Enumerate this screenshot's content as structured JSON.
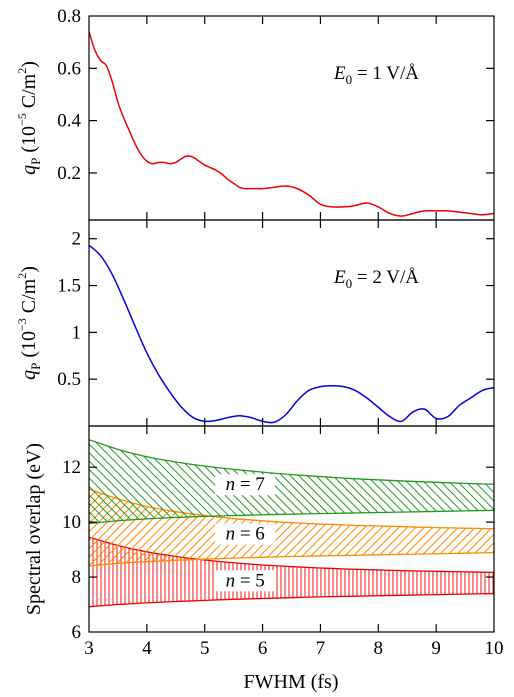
{
  "chart_data": [
    {
      "type": "line",
      "ylabel_main": "q",
      "ylabel_sub": "P",
      "ylabel_unit_pre": "(10",
      "ylabel_exp": "−5",
      "ylabel_unit_post": "C/m",
      "ylabel_unit_exp": "2",
      "ylabel_close": ")",
      "annotation_var": "E",
      "annotation_sub": "0",
      "annotation_val": "= 1 V/Å",
      "ylim": [
        0.02,
        0.8
      ],
      "yticks": [
        0.2,
        0.4,
        0.6,
        0.8
      ],
      "ytick_labels": [
        "0.2",
        "0.4",
        "0.6",
        "0.8"
      ],
      "color": "#ee0000",
      "x": [
        3.0,
        3.1,
        3.2,
        3.3,
        3.4,
        3.5,
        3.6,
        3.7,
        3.8,
        3.9,
        4.0,
        4.1,
        4.2,
        4.3,
        4.4,
        4.5,
        4.6,
        4.7,
        4.8,
        4.9,
        5.0,
        5.1,
        5.2,
        5.3,
        5.4,
        5.5,
        5.6,
        5.7,
        5.8,
        5.9,
        6.0,
        6.2,
        6.4,
        6.6,
        6.8,
        7.0,
        7.2,
        7.4,
        7.6,
        7.8,
        8.0,
        8.2,
        8.4,
        8.6,
        8.8,
        9.0,
        9.2,
        9.4,
        9.6,
        9.8,
        10.0
      ],
      "y": [
        0.74,
        0.67,
        0.63,
        0.61,
        0.55,
        0.47,
        0.41,
        0.36,
        0.31,
        0.27,
        0.245,
        0.235,
        0.24,
        0.24,
        0.235,
        0.24,
        0.255,
        0.265,
        0.26,
        0.245,
        0.23,
        0.22,
        0.21,
        0.195,
        0.175,
        0.16,
        0.145,
        0.14,
        0.14,
        0.14,
        0.14,
        0.145,
        0.15,
        0.14,
        0.115,
        0.08,
        0.07,
        0.07,
        0.075,
        0.085,
        0.07,
        0.045,
        0.035,
        0.045,
        0.055,
        0.055,
        0.055,
        0.05,
        0.045,
        0.04,
        0.045
      ]
    },
    {
      "type": "line",
      "ylabel_main": "q",
      "ylabel_sub": "P",
      "ylabel_unit_pre": "(10",
      "ylabel_exp": "−3",
      "ylabel_unit_post": "C/m",
      "ylabel_unit_exp": "2",
      "ylabel_close": ")",
      "annotation_var": "E",
      "annotation_sub": "0",
      "annotation_val": "= 2 V/Å",
      "ylim": [
        0.0,
        2.2
      ],
      "yticks": [
        0.5,
        1,
        1.5,
        2
      ],
      "ytick_labels": [
        "0.5",
        "1",
        "1.5",
        "2"
      ],
      "color": "#0000dd",
      "x": [
        3.0,
        3.2,
        3.4,
        3.6,
        3.8,
        4.0,
        4.2,
        4.4,
        4.6,
        4.8,
        5.0,
        5.2,
        5.4,
        5.6,
        5.8,
        6.0,
        6.2,
        6.4,
        6.6,
        6.8,
        7.0,
        7.2,
        7.4,
        7.6,
        7.8,
        8.0,
        8.2,
        8.4,
        8.6,
        8.8,
        9.0,
        9.2,
        9.4,
        9.6,
        9.8,
        10.0
      ],
      "y": [
        1.93,
        1.82,
        1.62,
        1.35,
        1.06,
        0.78,
        0.55,
        0.36,
        0.2,
        0.09,
        0.05,
        0.06,
        0.09,
        0.11,
        0.09,
        0.05,
        0.04,
        0.12,
        0.27,
        0.38,
        0.42,
        0.43,
        0.42,
        0.38,
        0.3,
        0.2,
        0.1,
        0.05,
        0.15,
        0.18,
        0.08,
        0.1,
        0.22,
        0.3,
        0.38,
        0.41
      ]
    },
    {
      "type": "area",
      "ylabel": "Spectral overlap (eV)",
      "xlabel": "FWHM (fs)",
      "ylim": [
        6,
        13.5
      ],
      "yticks": [
        6,
        8,
        10,
        12
      ],
      "ytick_labels": [
        "6",
        "8",
        "10",
        "12"
      ],
      "xlim": [
        3,
        10
      ],
      "xticks": [
        3,
        4,
        5,
        6,
        7,
        8,
        9,
        10
      ],
      "xtick_labels": [
        "3",
        "4",
        "5",
        "6",
        "7",
        "8",
        "9",
        "10"
      ],
      "bands": [
        {
          "label_var": "n",
          "label_val": "= 5",
          "color": "#ee0000",
          "hatch": "vertical",
          "label_x": 5.7,
          "label_y": 7.7,
          "x": [
            3,
            3.5,
            4,
            4.5,
            5,
            5.5,
            6,
            6.5,
            7,
            7.5,
            8,
            8.5,
            9,
            9.5,
            10
          ],
          "upper": [
            9.45,
            9.15,
            8.92,
            8.75,
            8.62,
            8.52,
            8.44,
            8.38,
            8.33,
            8.29,
            8.26,
            8.23,
            8.21,
            8.19,
            8.17
          ],
          "lower": [
            6.92,
            7.0,
            7.06,
            7.11,
            7.15,
            7.19,
            7.22,
            7.25,
            7.28,
            7.3,
            7.32,
            7.34,
            7.36,
            7.38,
            7.4
          ]
        },
        {
          "label_var": "n",
          "label_val": "= 6",
          "color": "#ff8800",
          "hatch": "diagonal-down",
          "label_x": 5.7,
          "label_y": 9.4,
          "x": [
            3,
            3.5,
            4,
            4.5,
            5,
            5.5,
            6,
            6.5,
            7,
            7.5,
            8,
            8.5,
            9,
            9.5,
            10
          ],
          "upper": [
            11.2,
            10.85,
            10.57,
            10.38,
            10.24,
            10.13,
            10.05,
            9.98,
            9.93,
            9.89,
            9.86,
            9.83,
            9.8,
            9.78,
            9.76
          ],
          "lower": [
            8.4,
            8.5,
            8.56,
            8.61,
            8.65,
            8.69,
            8.72,
            8.75,
            8.77,
            8.79,
            8.81,
            8.83,
            8.85,
            8.87,
            8.89
          ]
        },
        {
          "label_var": "n",
          "label_val": "= 7",
          "color": "#229922",
          "hatch": "diagonal-up",
          "label_x": 5.7,
          "label_y": 11.2,
          "x": [
            3,
            3.5,
            4,
            4.5,
            5,
            5.5,
            6,
            6.5,
            7,
            7.5,
            8,
            8.5,
            9,
            9.5,
            10
          ],
          "upper": [
            13.0,
            12.65,
            12.38,
            12.19,
            12.04,
            11.92,
            11.82,
            11.73,
            11.66,
            11.59,
            11.54,
            11.49,
            11.45,
            11.41,
            11.38
          ],
          "lower": [
            9.95,
            10.05,
            10.12,
            10.17,
            10.21,
            10.24,
            10.27,
            10.29,
            10.31,
            10.33,
            10.35,
            10.37,
            10.39,
            10.41,
            10.43
          ]
        }
      ]
    }
  ]
}
